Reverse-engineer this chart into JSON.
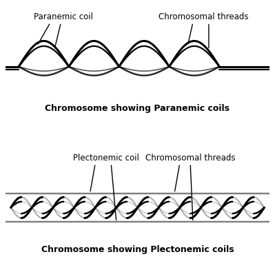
{
  "title_paranemic": "Chromosome showing Paranemic coils",
  "title_plectonemic": "Chromosome showing Plectonemic coils",
  "label_paranemic_coil": "Paranemic coil",
  "label_chromosomal_threads_top": "Chromosomal threads",
  "label_plectonemic_coil": "Plectonemic coil",
  "label_chromosomal_threads_bottom": "Chromosomal threads",
  "bg_color": "#ffffff",
  "line_color": "#000000",
  "title_fontsize": 9,
  "label_fontsize": 8.5,
  "lw_outer": 2.2,
  "lw_inner": 1.6
}
